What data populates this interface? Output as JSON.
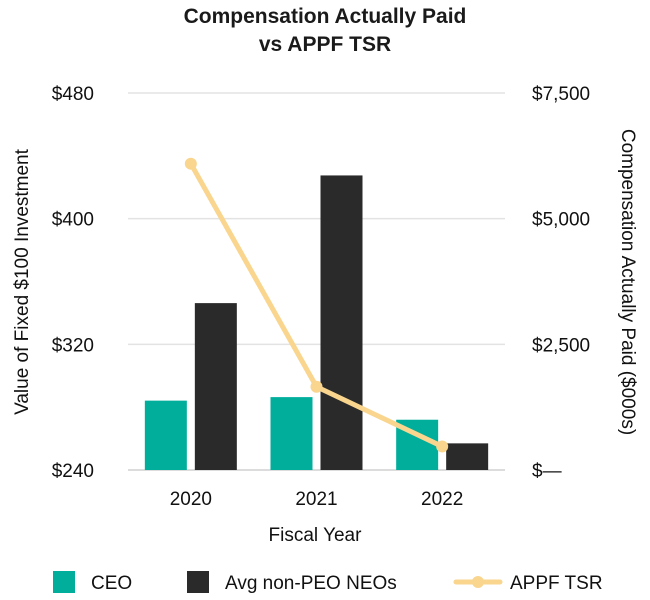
{
  "chart_data": {
    "type": "bar",
    "title_lines": [
      "Compensation Actually Paid",
      "vs APPF TSR"
    ],
    "categories": [
      "2020",
      "2021",
      "2022"
    ],
    "xlabel": "Fiscal Year",
    "ylabel_left": "Value of Fixed $100 Investment",
    "ylabel_right": "Compensation Actually Paid ($000s)",
    "left_axis": {
      "range": [
        240,
        480
      ],
      "ticks": [
        240,
        320,
        400,
        480
      ],
      "tick_labels": [
        "$240",
        "$320",
        "$400",
        "$480"
      ]
    },
    "right_axis": {
      "range": [
        0,
        7500
      ],
      "ticks": [
        0,
        2500,
        5000,
        7500
      ],
      "tick_labels": [
        "$—",
        "$2,500",
        "$5,000",
        "$7,500"
      ]
    },
    "series": [
      {
        "name": "CEO",
        "kind": "bar",
        "axis": "right",
        "color": "#00ae9b",
        "values": [
          1380,
          1450,
          1000
        ]
      },
      {
        "name": "Avg non-PEO NEOs",
        "kind": "bar",
        "axis": "right",
        "color": "#2a2a2a",
        "values": [
          3320,
          5860,
          530
        ]
      },
      {
        "name": "APPF TSR",
        "kind": "line",
        "axis": "left",
        "color": "#f9d58e",
        "values": [
          435,
          293,
          255
        ]
      }
    ],
    "gridlines": true,
    "legend_position": "bottom"
  }
}
